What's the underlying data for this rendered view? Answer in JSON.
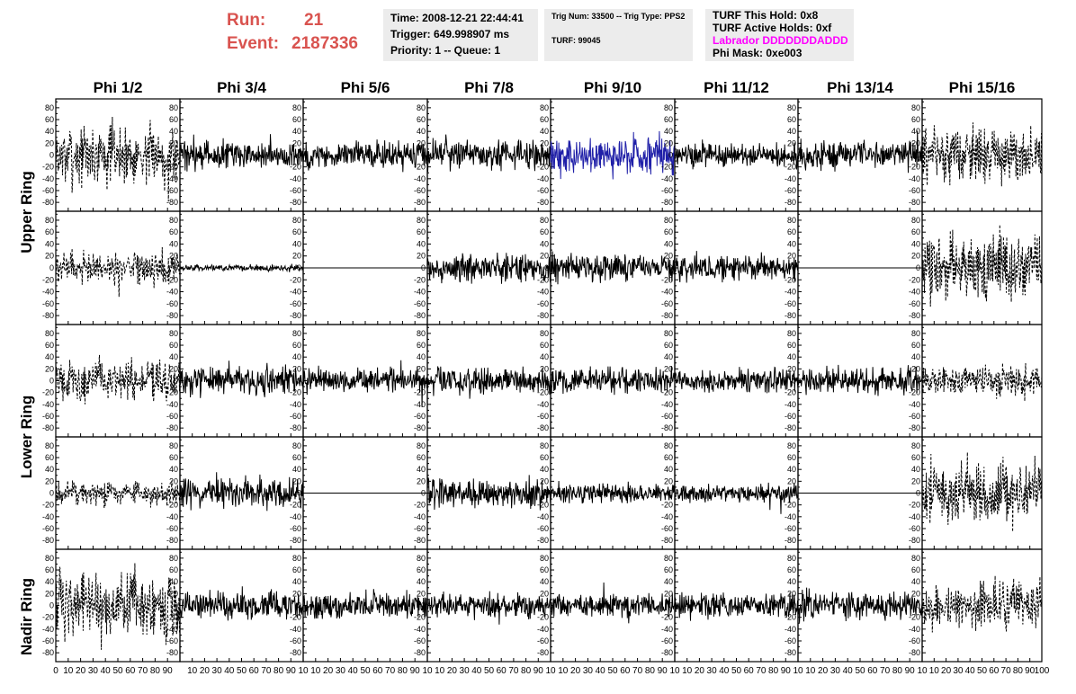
{
  "header": {
    "run_label": "Run:",
    "run_value": "21",
    "event_label": "Event:",
    "event_value": "2187336",
    "time": "Time: 2008-12-21 22:44:41",
    "trigger": "Trigger: 649.998907 ms",
    "priority": "Priority: 1 -- Queue: 1",
    "trig_num": "Trig Num: 33500 -- Trig Type: PPS2",
    "turf": "TURF: 99045",
    "turf_this_hold": "TURF This Hold: 0x8",
    "turf_active_holds": "TURF Active Holds: 0xf",
    "labrador": "Labrador DDDDDDDADDD",
    "phi_mask": "Phi Mask: 0xe003"
  },
  "colors": {
    "run_text": "#d9534f",
    "labrador_text": "#ff00ff",
    "highlight_trace": "#1f1fa8",
    "trace": "#000000",
    "info_box": "#ececec"
  },
  "phi_labels": [
    "Phi 1/2",
    "Phi 3/4",
    "Phi 5/6",
    "Phi 7/8",
    "Phi 9/10",
    "Phi 11/12",
    "Phi 13/14",
    "Phi 15/16"
  ],
  "ring_labels": [
    {
      "name": "Upper Ring"
    },
    {
      "name": "Lower Ring"
    },
    {
      "name": "Nadir Ring"
    }
  ],
  "chart_data": {
    "type": "line",
    "rows": 5,
    "cols": 8,
    "xlim": [
      0,
      100
    ],
    "ylim": [
      -95,
      95
    ],
    "x_ticks": [
      0,
      10,
      20,
      30,
      40,
      50,
      60,
      70,
      80,
      90,
      100
    ],
    "x_tick_labels_first": [
      "0",
      "10",
      "20",
      "30",
      "40",
      "50",
      "60",
      "70",
      "80",
      "90"
    ],
    "x_tick_labels_inner": [
      "10",
      "20",
      "30",
      "40",
      "50",
      "60",
      "70",
      "80",
      "90",
      "10"
    ],
    "x_tick_labels_last": [
      "10",
      "20",
      "30",
      "40",
      "50",
      "60",
      "70",
      "80",
      "90",
      "100"
    ],
    "y_ticks": [
      -80,
      -60,
      -40,
      -20,
      0,
      20,
      40,
      60,
      80
    ],
    "y_tick_labels": [
      "-80",
      "-60",
      "-40",
      "-20",
      "0",
      "20",
      "40",
      "60",
      "80"
    ],
    "n_samples": 260,
    "amplitude": [
      [
        30,
        14,
        14,
        14,
        20,
        12,
        14,
        28
      ],
      [
        16,
        3,
        0,
        14,
        13,
        13,
        0,
        32
      ],
      [
        20,
        15,
        12,
        14,
        13,
        12,
        13,
        16
      ],
      [
        12,
        15,
        0,
        15,
        10,
        9,
        0,
        30
      ],
      [
        33,
        14,
        13,
        13,
        12,
        13,
        14,
        22
      ]
    ],
    "dashed": [
      [
        true,
        false,
        false,
        false,
        false,
        false,
        false,
        true
      ],
      [
        true,
        false,
        false,
        false,
        false,
        false,
        false,
        true
      ],
      [
        true,
        false,
        false,
        false,
        false,
        false,
        false,
        true
      ],
      [
        true,
        false,
        false,
        false,
        false,
        false,
        false,
        true
      ],
      [
        true,
        false,
        false,
        false,
        false,
        false,
        false,
        true
      ]
    ],
    "highlight": [
      [
        false,
        false,
        false,
        false,
        true,
        false,
        false,
        false
      ],
      [
        false,
        false,
        false,
        false,
        false,
        false,
        false,
        false
      ],
      [
        false,
        false,
        false,
        false,
        false,
        false,
        false,
        false
      ],
      [
        false,
        false,
        false,
        false,
        false,
        false,
        false,
        false
      ],
      [
        false,
        false,
        false,
        false,
        false,
        false,
        false,
        false
      ]
    ]
  }
}
